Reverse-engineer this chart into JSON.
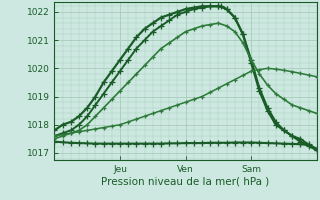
{
  "background_color": "#cce8e0",
  "grid_color": "#aaccbb",
  "line_color_dark": "#1a5c28",
  "line_color_mid": "#2d7a3a",
  "title": "Pression niveau de la mer( hPa )",
  "ylabel_ticks": [
    1017,
    1018,
    1019,
    1020,
    1021,
    1022
  ],
  "ylim": [
    1016.75,
    1022.35
  ],
  "xlim": [
    0,
    96
  ],
  "xtick_positions": [
    24,
    48,
    72
  ],
  "xtick_labels": [
    "Jeu",
    "Ven",
    "Sam"
  ],
  "series": [
    {
      "x": [
        0,
        3,
        6,
        9,
        12,
        15,
        18,
        21,
        24,
        27,
        30,
        33,
        36,
        39,
        42,
        45,
        48,
        51,
        54,
        57,
        60,
        61,
        63,
        66,
        69,
        72,
        75,
        78,
        81,
        84,
        87,
        90,
        93,
        96
      ],
      "y": [
        1017.8,
        1018.0,
        1018.1,
        1018.3,
        1018.6,
        1019.0,
        1019.5,
        1019.9,
        1020.3,
        1020.7,
        1021.1,
        1021.4,
        1021.6,
        1021.8,
        1021.9,
        1022.0,
        1022.1,
        1022.15,
        1022.2,
        1022.2,
        1022.2,
        1022.2,
        1022.1,
        1021.8,
        1021.2,
        1020.2,
        1019.2,
        1018.5,
        1018.0,
        1017.8,
        1017.6,
        1017.4,
        1017.25,
        1017.1
      ],
      "marker": "+",
      "lw": 1.6,
      "ms": 4,
      "color": "#1a5c28"
    },
    {
      "x": [
        0,
        3,
        6,
        9,
        12,
        15,
        18,
        21,
        24,
        27,
        30,
        33,
        36,
        39,
        42,
        45,
        48,
        51,
        54,
        57,
        60,
        63,
        66,
        69,
        72,
        75,
        78,
        81,
        84,
        87,
        90,
        93,
        96
      ],
      "y": [
        1017.6,
        1017.7,
        1017.8,
        1018.0,
        1018.3,
        1018.7,
        1019.1,
        1019.5,
        1019.9,
        1020.3,
        1020.7,
        1021.0,
        1021.3,
        1021.5,
        1021.7,
        1021.9,
        1022.0,
        1022.1,
        1022.15,
        1022.2,
        1022.2,
        1022.1,
        1021.8,
        1021.2,
        1020.3,
        1019.3,
        1018.6,
        1018.1,
        1017.8,
        1017.6,
        1017.5,
        1017.3,
        1017.15
      ],
      "marker": "+",
      "lw": 1.4,
      "ms": 4,
      "color": "#1a5c28"
    },
    {
      "x": [
        0,
        3,
        6,
        9,
        12,
        15,
        18,
        21,
        24,
        27,
        30,
        33,
        36,
        39,
        42,
        45,
        48,
        51,
        54,
        57,
        60,
        63,
        66,
        69,
        72,
        75,
        78,
        81,
        84,
        87,
        90,
        93,
        96
      ],
      "y": [
        1017.5,
        1017.6,
        1017.7,
        1017.8,
        1018.0,
        1018.3,
        1018.6,
        1018.9,
        1019.2,
        1019.5,
        1019.8,
        1020.1,
        1020.4,
        1020.7,
        1020.9,
        1021.1,
        1021.3,
        1021.4,
        1021.5,
        1021.55,
        1021.6,
        1021.5,
        1021.3,
        1020.9,
        1020.3,
        1019.8,
        1019.4,
        1019.1,
        1018.9,
        1018.7,
        1018.6,
        1018.5,
        1018.4
      ],
      "marker": "+",
      "lw": 1.2,
      "ms": 3,
      "color": "#2d7a3a"
    },
    {
      "x": [
        0,
        3,
        6,
        9,
        12,
        15,
        18,
        21,
        24,
        27,
        30,
        33,
        36,
        39,
        42,
        45,
        48,
        51,
        54,
        57,
        60,
        63,
        66,
        69,
        72,
        75,
        78,
        81,
        84,
        87,
        90,
        93,
        96
      ],
      "y": [
        1017.6,
        1017.65,
        1017.7,
        1017.75,
        1017.8,
        1017.85,
        1017.9,
        1017.95,
        1018.0,
        1018.1,
        1018.2,
        1018.3,
        1018.4,
        1018.5,
        1018.6,
        1018.7,
        1018.8,
        1018.9,
        1019.0,
        1019.15,
        1019.3,
        1019.45,
        1019.6,
        1019.75,
        1019.9,
        1019.95,
        1020.0,
        1019.97,
        1019.93,
        1019.88,
        1019.82,
        1019.76,
        1019.7
      ],
      "marker": "+",
      "lw": 1.1,
      "ms": 3,
      "color": "#2d7a3a"
    },
    {
      "x": [
        0,
        3,
        6,
        9,
        12,
        15,
        18,
        21,
        24,
        27,
        30,
        33,
        36,
        39,
        42,
        45,
        48,
        51,
        54,
        57,
        60,
        63,
        66,
        69,
        72,
        75,
        78,
        81,
        84,
        87,
        90,
        93,
        96
      ],
      "y": [
        1017.4,
        1017.38,
        1017.36,
        1017.35,
        1017.34,
        1017.33,
        1017.33,
        1017.33,
        1017.33,
        1017.33,
        1017.33,
        1017.33,
        1017.33,
        1017.33,
        1017.34,
        1017.34,
        1017.35,
        1017.35,
        1017.35,
        1017.36,
        1017.36,
        1017.36,
        1017.37,
        1017.37,
        1017.37,
        1017.36,
        1017.35,
        1017.34,
        1017.33,
        1017.32,
        1017.31,
        1017.28,
        1017.1
      ],
      "marker": "+",
      "lw": 1.5,
      "ms": 4,
      "color": "#1a5c28"
    }
  ]
}
